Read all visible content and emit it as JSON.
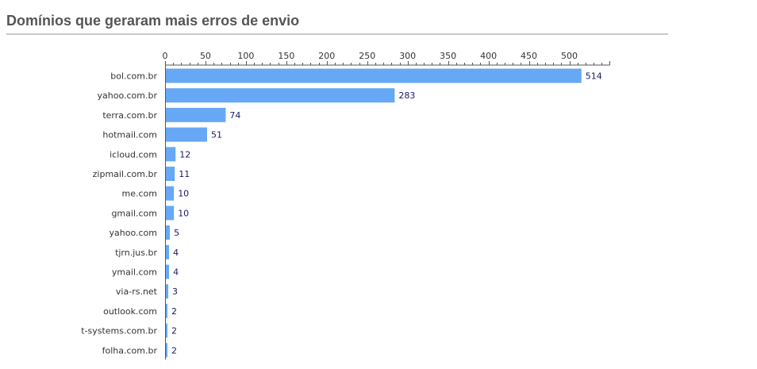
{
  "page": {
    "title": "Domínios que geraram mais erros de envio"
  },
  "chart_data": {
    "type": "bar",
    "orientation": "horizontal",
    "title": "",
    "xlabel": "",
    "ylabel": "",
    "xlim": [
      0,
      550
    ],
    "x_ticks": [
      0,
      50,
      100,
      150,
      200,
      250,
      300,
      350,
      400,
      450,
      500
    ],
    "x_axis_position": "top",
    "grid": false,
    "show_data_labels": true,
    "bar_color": "#66a8f5",
    "categories": [
      "bol.com.br",
      "yahoo.com.br",
      "terra.com.br",
      "hotmail.com",
      "icloud.com",
      "zipmail.com.br",
      "me.com",
      "gmail.com",
      "yahoo.com",
      "tjrn.jus.br",
      "ymail.com",
      "via-rs.net",
      "outlook.com",
      "t-systems.com.br",
      "folha.com.br"
    ],
    "values": [
      514,
      283,
      74,
      51,
      12,
      11,
      10,
      10,
      5,
      4,
      4,
      3,
      2,
      2,
      2
    ]
  }
}
